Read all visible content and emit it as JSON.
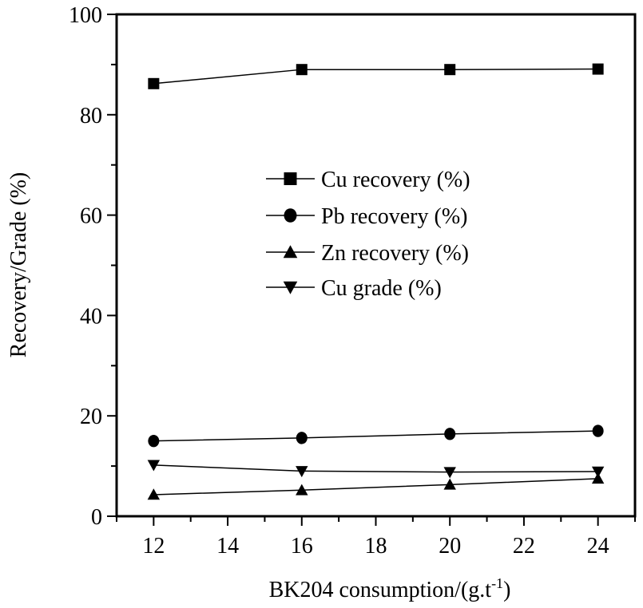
{
  "chart_data": {
    "type": "line",
    "title": "",
    "xlabel": "BK204 consumption/(g.t",
    "xlabel_superscript": "-1",
    "xlabel_suffix": ")",
    "ylabel": "Recovery/Grade (%)",
    "x": [
      12,
      16,
      20,
      24
    ],
    "xlim": [
      11,
      25
    ],
    "ylim": [
      0,
      100
    ],
    "x_ticks": [
      "12",
      "14",
      "16",
      "18",
      "20",
      "22",
      "24"
    ],
    "y_ticks": [
      "0",
      "20",
      "40",
      "60",
      "80",
      "100"
    ],
    "grid": false,
    "legend_position": "center",
    "series": [
      {
        "name": "Cu recovery (%)",
        "marker": "square",
        "values": [
          86.2,
          89.0,
          89.0,
          89.1
        ]
      },
      {
        "name": "Pb recovery (%)",
        "marker": "circle",
        "values": [
          15.0,
          15.6,
          16.4,
          17.0
        ]
      },
      {
        "name": "Zn recovery (%)",
        "marker": "triangle-up",
        "values": [
          4.3,
          5.2,
          6.3,
          7.5
        ]
      },
      {
        "name": "Cu grade (%)",
        "marker": "triangle-down",
        "values": [
          10.2,
          9.0,
          8.8,
          8.9
        ]
      }
    ],
    "colors": {
      "line": "#000000",
      "marker": "#000000"
    }
  }
}
